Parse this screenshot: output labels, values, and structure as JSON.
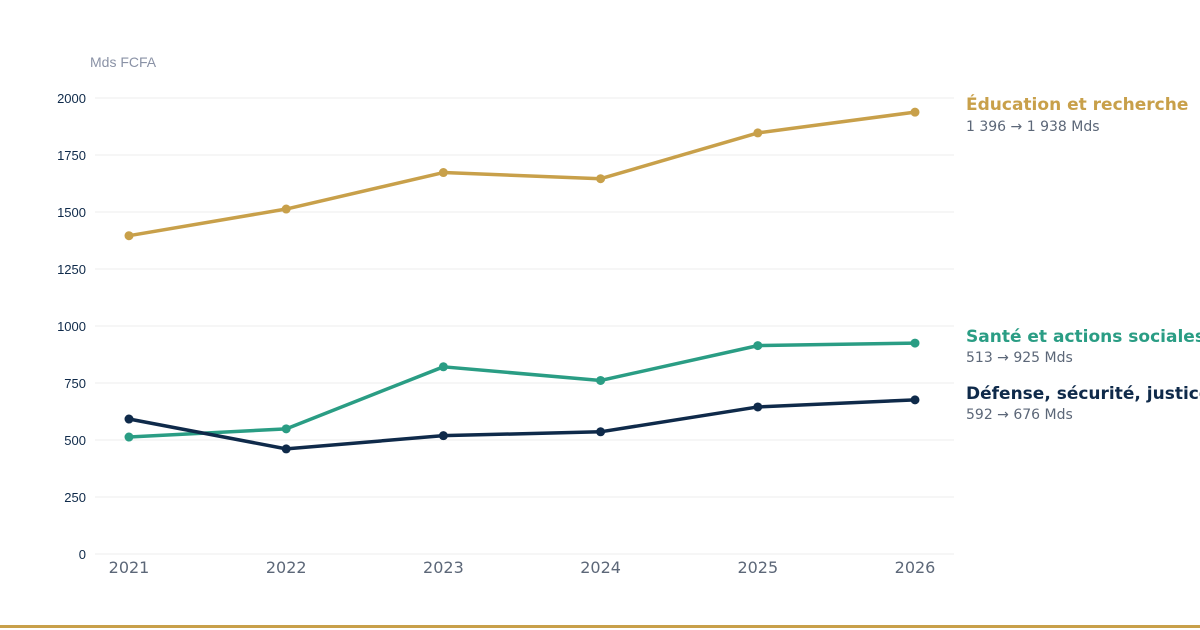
{
  "chart_data": {
    "type": "line",
    "unit_label": "Mds FCFA",
    "categories": [
      "2021",
      "2022",
      "2023",
      "2024",
      "2025",
      "2026"
    ],
    "ylim": [
      0,
      2000
    ],
    "yticks": [
      0,
      250,
      500,
      750,
      1000,
      1250,
      1500,
      1750,
      2000
    ],
    "grid": true,
    "legend": "right",
    "series": [
      {
        "name": "Éducation et recherche",
        "values": [
          1396,
          1513,
          1673,
          1646,
          1847,
          1938
        ],
        "summary": "1 396 → 1 938 Mds",
        "color": "#c8a04a"
      },
      {
        "name": "Santé et actions sociales",
        "values": [
          513,
          549,
          821,
          761,
          914,
          925
        ],
        "summary": "513 → 925 Mds",
        "color": "#2a9d84"
      },
      {
        "name": "Défense, sécurité, justice",
        "values": [
          592,
          461,
          519,
          536,
          645,
          676
        ],
        "summary": "592 → 676 Mds",
        "color": "#0f2a4a"
      }
    ]
  },
  "colors": {
    "grid": "#ececec",
    "y_tick_text": "#0f2a4a",
    "x_tick_text": "#5c6778",
    "unit_text": "#8a92a6",
    "summary_text": "#5c6778",
    "bottom_rule": "#c8a04a"
  }
}
